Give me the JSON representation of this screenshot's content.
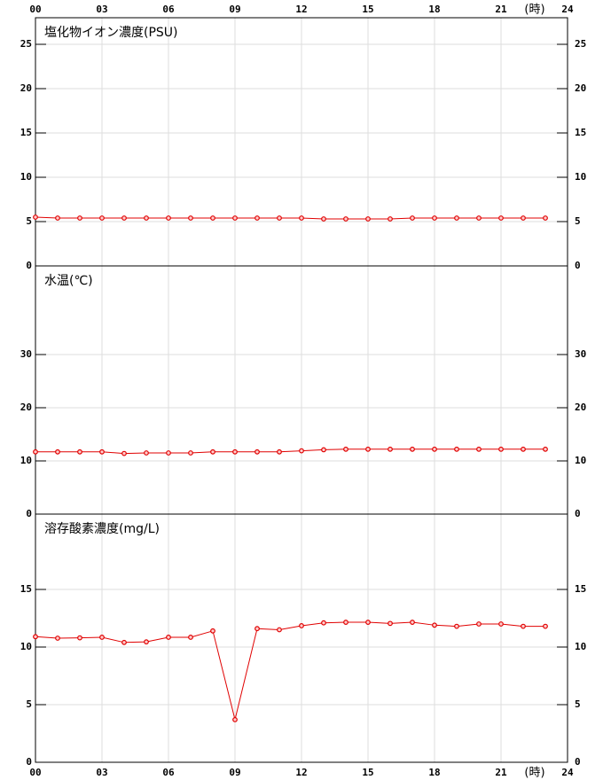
{
  "chart_data": [
    {
      "type": "line",
      "title": "塩化物イオン濃度(PSU)",
      "color": "#e00000",
      "x": [
        0,
        1,
        2,
        3,
        4,
        5,
        6,
        7,
        8,
        9,
        10,
        11,
        12,
        13,
        14,
        15,
        16,
        17,
        18,
        19,
        20,
        21,
        22,
        23
      ],
      "values": [
        5.5,
        5.4,
        5.4,
        5.4,
        5.4,
        5.4,
        5.4,
        5.4,
        5.4,
        5.4,
        5.4,
        5.4,
        5.4,
        5.3,
        5.3,
        5.3,
        5.3,
        5.4,
        5.4,
        5.4,
        5.4,
        5.4,
        5.4,
        5.4
      ],
      "xlim": [
        0,
        24
      ],
      "xticks": [
        {
          "value": 0,
          "label": "00"
        },
        {
          "value": 3,
          "label": "03"
        },
        {
          "value": 6,
          "label": "06"
        },
        {
          "value": 9,
          "label": "09"
        },
        12,
        15,
        18,
        21,
        24
      ],
      "x_unit": "(時)",
      "ylim": [
        0,
        28
      ],
      "yticks": [
        0,
        5,
        10,
        15,
        20,
        25
      ],
      "grid": true
    },
    {
      "type": "line",
      "title": "水温(℃)",
      "color": "#e00000",
      "x": [
        0,
        1,
        2,
        3,
        4,
        5,
        6,
        7,
        8,
        9,
        10,
        11,
        12,
        13,
        14,
        15,
        16,
        17,
        18,
        19,
        20,
        21,
        22,
        23
      ],
      "values": [
        11.7,
        11.7,
        11.7,
        11.7,
        11.4,
        11.5,
        11.5,
        11.5,
        11.7,
        11.7,
        11.7,
        11.7,
        11.9,
        12.1,
        12.2,
        12.2,
        12.2,
        12.2,
        12.2,
        12.2,
        12.2,
        12.2,
        12.2,
        12.2
      ],
      "xlim": [
        0,
        24
      ],
      "ylim": [
        0,
        46.67
      ],
      "yticks": [
        0,
        10,
        20,
        30
      ],
      "grid": true
    },
    {
      "type": "line",
      "title": "溶存酸素濃度(mg/L)",
      "color": "#e00000",
      "x": [
        0,
        1,
        2,
        3,
        4,
        5,
        6,
        7,
        8,
        9,
        10,
        11,
        12,
        13,
        14,
        15,
        16,
        17,
        18,
        19,
        20,
        21,
        22,
        23
      ],
      "values": [
        10.9,
        10.77,
        10.8,
        10.85,
        10.4,
        10.45,
        10.85,
        10.85,
        11.4,
        3.7,
        11.6,
        11.5,
        11.85,
        12.1,
        12.15,
        12.15,
        12.05,
        12.15,
        11.9,
        11.8,
        12.0,
        12.0,
        11.8,
        11.8
      ],
      "xlim": [
        0,
        24
      ],
      "xticks": [
        {
          "value": 0,
          "label": "00"
        },
        {
          "value": 3,
          "label": "03"
        },
        {
          "value": 6,
          "label": "06"
        },
        {
          "value": 9,
          "label": "09"
        },
        12,
        15,
        18,
        21,
        24
      ],
      "x_unit": "(時)",
      "ylim": [
        0,
        21.54
      ],
      "yticks": [
        0,
        5,
        10,
        15
      ],
      "grid": true
    }
  ]
}
